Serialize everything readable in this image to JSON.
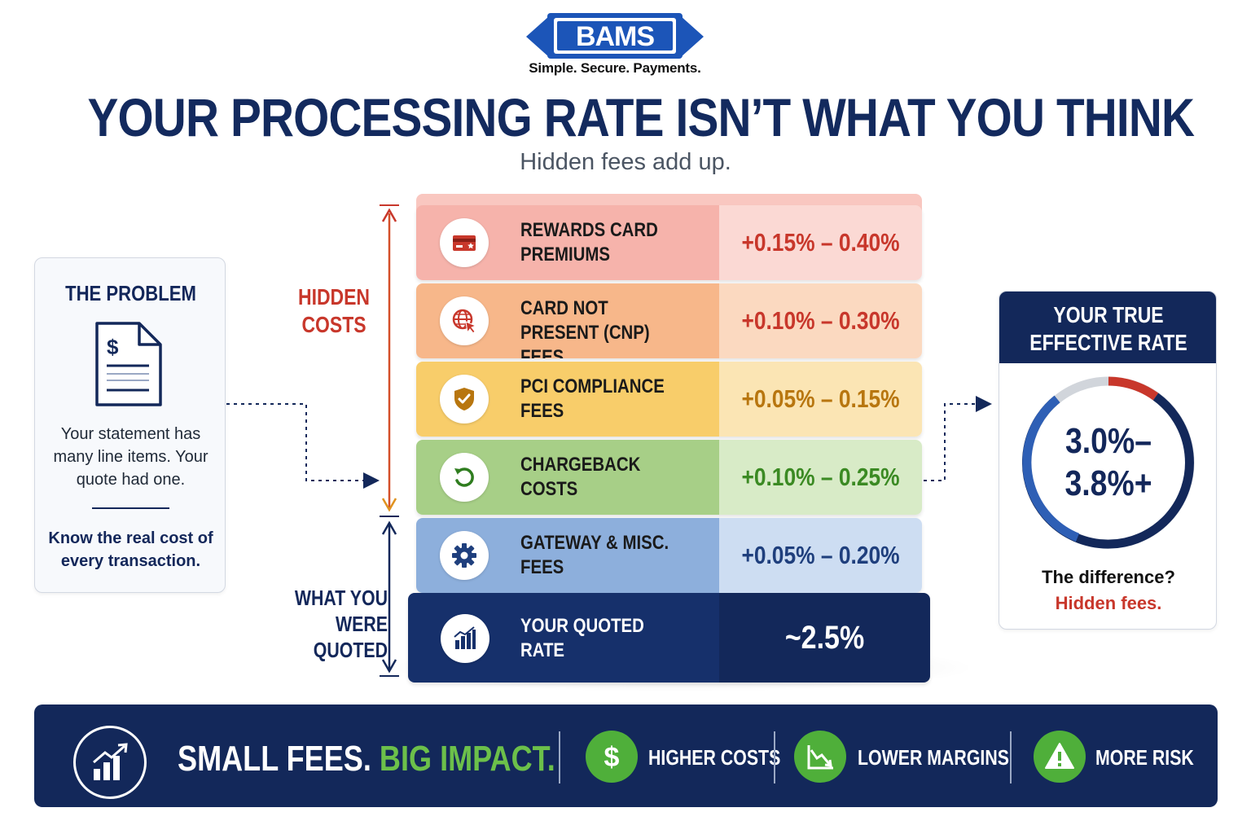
{
  "brand": {
    "logo_text": "BAMS",
    "tagline": "Simple. Secure. Payments."
  },
  "header": {
    "title": "YOUR PROCESSING RATE ISN’T WHAT YOU THINK",
    "subtitle": "Hidden fees add up."
  },
  "problem_card": {
    "title": "THE PROBLEM",
    "text": "Your statement has many line items. Your quote had one.",
    "callout": "Know the real cost of every transaction."
  },
  "labels": {
    "hidden_costs": "HIDDEN COSTS",
    "quoted": "WHAT YOU WERE QUOTED"
  },
  "stack": [
    {
      "label": "REWARDS CARD PREMIUMS",
      "range": "+0.15% – 0.40%",
      "icon": "credit-card-icon"
    },
    {
      "label": "CARD NOT PRESENT (CNP) FEES",
      "range": "+0.10% – 0.30%",
      "icon": "globe-cursor-icon"
    },
    {
      "label": "PCI COMPLIANCE FEES",
      "range": "+0.05% – 0.15%",
      "icon": "shield-check-icon"
    },
    {
      "label": "CHARGEBACK COSTS",
      "range": "+0.10% – 0.25%",
      "icon": "refresh-arrow-icon"
    },
    {
      "label": "GATEWAY & MISC. FEES",
      "range": "+0.05% – 0.20%",
      "icon": "gear-icon"
    },
    {
      "label": "YOUR QUOTED RATE",
      "range": "~2.5%",
      "icon": "bar-chart-icon"
    }
  ],
  "effective_rate": {
    "title": "YOUR TRUE EFFECTIVE RATE",
    "rate_line1": "3.0%–",
    "rate_line2": "3.8%+",
    "difference": "The difference?",
    "answer": "Hidden fees."
  },
  "banner": {
    "slogan_part1": "SMALL FEES.",
    "slogan_part2": "BIG IMPACT.",
    "items": [
      {
        "label": "HIGHER COSTS",
        "icon": "dollar-icon"
      },
      {
        "label": "LOWER MARGINS",
        "icon": "trend-down-icon"
      },
      {
        "label": "MORE RISK",
        "icon": "warning-icon"
      }
    ]
  },
  "colors": {
    "navy": "#13285a",
    "red": "#c8372b",
    "green": "#6cc04a"
  }
}
